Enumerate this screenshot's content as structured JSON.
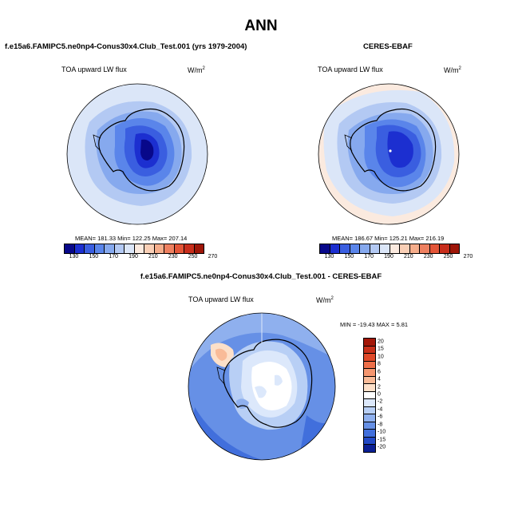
{
  "main_title": "ANN",
  "panels": {
    "model": {
      "title": "f.e15a6.FAMIPC5.ne0np4-Conus30x4.Club_Test.001 (yrs 1979-2004)",
      "variable": "TOA upward LW flux",
      "units": "W/m",
      "units_exp": "2",
      "stats": "MEAN= 181.33  Min= 122.25  Max= 207.14",
      "colorbar_labels": [
        "130",
        "150",
        "170",
        "190",
        "210",
        "230",
        "250",
        "270"
      ]
    },
    "obs": {
      "title": "CERES-EBAF",
      "variable": "TOA upward LW flux",
      "units": "W/m",
      "units_exp": "2",
      "stats": "MEAN= 186.67  Min= 125.21  Max= 216.19",
      "colorbar_labels": [
        "130",
        "150",
        "170",
        "190",
        "210",
        "230",
        "250",
        "270"
      ]
    },
    "diff": {
      "title": "f.e15a6.FAMIPC5.ne0np4-Conus30x4.Club_Test.001 - CERES-EBAF",
      "variable": "TOA upward LW flux",
      "units": "W/m",
      "units_exp": "2",
      "stats": "MIN = -19.43 MAX =  5.81",
      "colorbar_labels": [
        "20",
        "15",
        "10",
        "8",
        "6",
        "4",
        "2",
        "0",
        "-2",
        "-4",
        "-6",
        "-8",
        "-10",
        "-15",
        "-20"
      ]
    }
  },
  "colors": {
    "abs_scale": [
      "#08088a",
      "#1c2fd0",
      "#3a5ee0",
      "#5a85ea",
      "#86a9ee",
      "#b3c9f3",
      "#dbe6f8",
      "#fbeadf",
      "#f9cfb6",
      "#f5ad8b",
      "#ee8060",
      "#e35538",
      "#c82e1c",
      "#9e1608"
    ],
    "diff_scale": [
      "#a31708",
      "#c9301a",
      "#e04a2a",
      "#ee6f49",
      "#f5966f",
      "#f9bb98",
      "#fde0c9",
      "#ffffff",
      "#dce8fb",
      "#b8cff5",
      "#8fb0ee",
      "#6690e6",
      "#416fdc",
      "#2249c6",
      "#0b1f94"
    ]
  }
}
